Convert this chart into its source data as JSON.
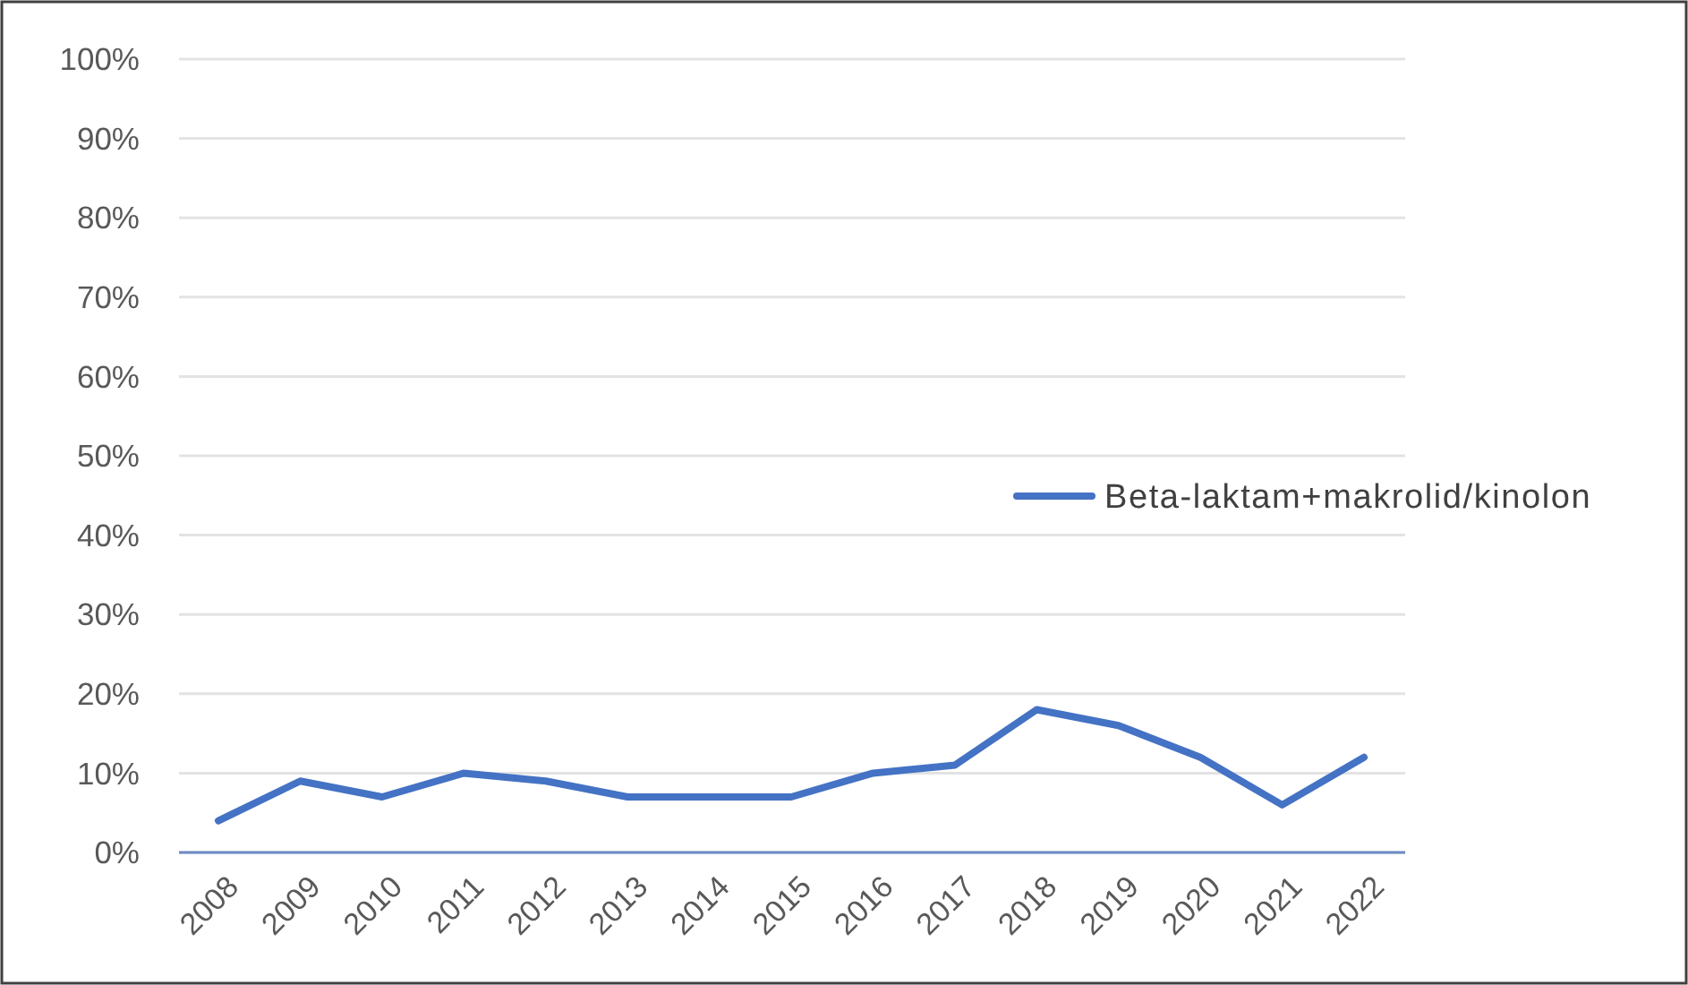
{
  "chart_data": {
    "type": "line",
    "categories": [
      "2008",
      "2009",
      "2010",
      "2011",
      "2012",
      "2013",
      "2014",
      "2015",
      "2016",
      "2017",
      "2018",
      "2019",
      "2020",
      "2021",
      "2022"
    ],
    "series": [
      {
        "name": "Beta-laktam+makrolid/kinolon",
        "color": "#4472c4",
        "values": [
          4,
          9,
          7,
          10,
          9,
          7,
          7,
          7,
          10,
          11,
          18,
          16,
          12,
          6,
          12
        ]
      }
    ],
    "ylim": [
      0,
      100
    ],
    "yticks": [
      {
        "value": 0,
        "label": "0%"
      },
      {
        "value": 10,
        "label": "10%"
      },
      {
        "value": 20,
        "label": "20%"
      },
      {
        "value": 30,
        "label": "30%"
      },
      {
        "value": 40,
        "label": "40%"
      },
      {
        "value": 50,
        "label": "50%"
      },
      {
        "value": 60,
        "label": "60%"
      },
      {
        "value": 70,
        "label": "70%"
      },
      {
        "value": 80,
        "label": "80%"
      },
      {
        "value": 90,
        "label": "90%"
      },
      {
        "value": 100,
        "label": "100%"
      }
    ],
    "grid": "y",
    "legend": "right"
  }
}
